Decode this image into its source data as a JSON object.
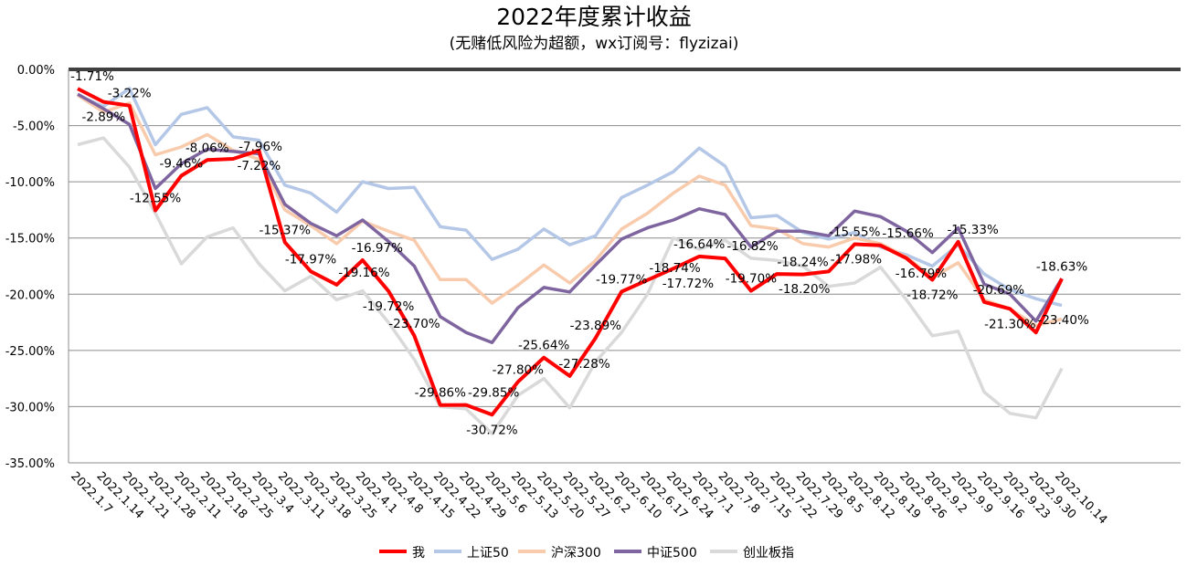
{
  "chart_data": {
    "type": "line",
    "title": "2022年度累计收益",
    "subtitle": "(无赌低风险为超额，wx订阅号：flyzizai)",
    "xlabel": "",
    "ylabel": "",
    "ylim": [
      -35,
      0
    ],
    "yticks": [
      "0.00%",
      "-5.00%",
      "-10.00%",
      "-15.00%",
      "-20.00%",
      "-25.00%",
      "-30.00%",
      "-35.00%"
    ],
    "grid": true,
    "legend_position": "bottom",
    "categories": [
      "2022.1.7",
      "2022.1.14",
      "2022.1.21",
      "2022.1.28",
      "2022.2.11",
      "2022.2.18",
      "2022.2.25",
      "2022.3.4",
      "2022.3.11",
      "2022.3.18",
      "2022.3.25",
      "2022.4.1",
      "2022.4.8",
      "2022.4.15",
      "2022.4.22",
      "2022.4.29",
      "2022.5.6",
      "2022.5.13",
      "2022.5.20",
      "2022.5.27",
      "2022.6.2",
      "2022.6.10",
      "2022.6.17",
      "2022.6.24",
      "2022.7.1",
      "2022.7.8",
      "2022.7.15",
      "2022.7.22",
      "2022.7.29",
      "2022.8.5",
      "2022.8.12",
      "2022.8.19",
      "2022.8.26",
      "2022.9.2",
      "2022.9.9",
      "2022.9.16",
      "2022.9.23",
      "2022.9.30",
      "2022.10.14"
    ],
    "series": [
      {
        "name": "上证50",
        "color": "#b4c7e7",
        "values": [
          -2.3,
          -3.3,
          -1.7,
          -6.7,
          -4.0,
          -3.4,
          -6.0,
          -6.3,
          -10.3,
          -11.0,
          -12.7,
          -10.0,
          -10.6,
          -10.5,
          -14.0,
          -14.3,
          -16.9,
          -16.0,
          -14.2,
          -15.6,
          -14.8,
          -11.4,
          -10.3,
          -9.1,
          -7.0,
          -8.6,
          -13.2,
          -13.0,
          -14.5,
          -15.1,
          -14.5,
          -15.8,
          -16.5,
          -17.5,
          -15.6,
          -18.2,
          -19.6,
          -20.4,
          -21.0
        ]
      },
      {
        "name": "沪深300",
        "color": "#f8cbad",
        "values": [
          -2.3,
          -3.8,
          -3.0,
          -7.6,
          -6.9,
          -5.8,
          -7.2,
          -8.0,
          -12.5,
          -13.9,
          -15.5,
          -13.5,
          -14.4,
          -15.2,
          -18.7,
          -18.7,
          -20.8,
          -19.2,
          -17.4,
          -19.0,
          -17.0,
          -14.2,
          -12.8,
          -11.0,
          -9.5,
          -10.3,
          -13.9,
          -14.2,
          -15.5,
          -15.8,
          -15.0,
          -15.5,
          -16.7,
          -18.5,
          -17.2,
          -20.5,
          -21.3,
          -22.8,
          -22.2
        ]
      },
      {
        "name": "创业板指",
        "color": "#d9d9d9",
        "values": [
          -6.7,
          -6.1,
          -8.7,
          -12.8,
          -17.3,
          -14.9,
          -14.1,
          -17.3,
          -19.7,
          -18.4,
          -20.5,
          -19.7,
          -22.5,
          -25.8,
          -30.0,
          -30.2,
          -32.4,
          -29.0,
          -27.5,
          -30.1,
          -26.0,
          -23.4,
          -20.0,
          -15.0,
          -16.0,
          -15.2,
          -16.8,
          -17.0,
          -17.5,
          -19.3,
          -19.0,
          -17.6,
          -20.5,
          -23.7,
          -23.3,
          -28.7,
          -30.6,
          -31.0,
          -26.6
        ]
      },
      {
        "name": "中证500",
        "color": "#7f659f",
        "values": [
          -2.2,
          -3.5,
          -4.9,
          -10.6,
          -8.4,
          -7.1,
          -7.3,
          -7.5,
          -12.0,
          -13.7,
          -14.8,
          -13.4,
          -15.3,
          -17.5,
          -22.0,
          -23.4,
          -24.3,
          -21.2,
          -19.4,
          -19.8,
          -17.4,
          -15.1,
          -14.1,
          -13.4,
          -12.4,
          -12.9,
          -15.8,
          -14.4,
          -14.4,
          -14.8,
          -12.6,
          -13.1,
          -14.4,
          -16.3,
          -14.1,
          -19.1,
          -20.0,
          -22.4,
          -18.6
        ]
      },
      {
        "name": "我",
        "color": "#ff0000",
        "values": [
          -1.71,
          -2.89,
          -3.22,
          -12.55,
          -9.46,
          -8.06,
          -7.96,
          -7.22,
          -15.37,
          -17.97,
          -19.16,
          -16.97,
          -19.72,
          -23.7,
          -29.86,
          -29.85,
          -30.72,
          -27.8,
          -25.64,
          -27.28,
          -23.89,
          -19.77,
          -18.74,
          -17.72,
          -16.64,
          -16.82,
          -19.7,
          -18.2,
          -18.24,
          -17.98,
          -15.55,
          -15.66,
          -16.79,
          -18.72,
          -15.33,
          -20.69,
          -21.3,
          -23.4,
          -18.63
        ],
        "labels": [
          "-1.71%",
          "-2.89%",
          "-3.22%",
          "-12.55%",
          "-9.46%",
          "-8.06%",
          "-7.96%",
          "-7.22%",
          "-15.37%",
          "-17.97%",
          "-19.16%",
          "-16.97%",
          "-19.72%",
          "-23.70%",
          "-29.86%",
          "-29.85%",
          "-30.72%",
          "-27.80%",
          "-25.64%",
          "-27.28%",
          "-23.89%",
          "-19.77%",
          "-18.74%",
          "-17.72%",
          "-16.64%",
          "-16.82%",
          "-19.70%",
          "-18.20%",
          "-18.24%",
          "-17.98%",
          "-15.55%",
          "-15.66%",
          "-16.79%",
          "-18.72%",
          "-15.33%",
          "-20.69%",
          "-21.30%",
          "-23.40%",
          "-18.63%"
        ]
      }
    ],
    "legend_order": [
      "我",
      "上证50",
      "沪深300",
      "中证500",
      "创业板指"
    ]
  }
}
